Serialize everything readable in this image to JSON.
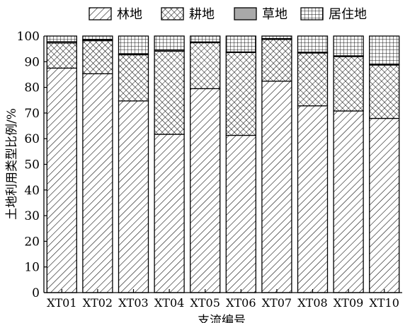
{
  "chart_data": {
    "type": "bar",
    "stacked": true,
    "categories": [
      "XT01",
      "XT02",
      "XT03",
      "XT04",
      "XT05",
      "XT06",
      "XT07",
      "XT08",
      "XT09",
      "XT10"
    ],
    "series": [
      {
        "name": "林地",
        "pattern": "diagonal-hatch",
        "values": [
          87.5,
          85.3,
          74.7,
          61.7,
          79.5,
          61.3,
          82.4,
          72.8,
          70.8,
          67.9
        ]
      },
      {
        "name": "耕地",
        "pattern": "cross-hatch",
        "values": [
          9.8,
          12.9,
          18.0,
          32.4,
          17.9,
          32.3,
          16.3,
          20.6,
          21.2,
          20.8
        ]
      },
      {
        "name": "草地",
        "pattern": "solid-gray",
        "values": [
          0.5,
          0.4,
          0.3,
          0.5,
          0.3,
          0.2,
          0.3,
          0.3,
          0.3,
          0.3
        ]
      },
      {
        "name": "居住地",
        "pattern": "grid",
        "values": [
          2.2,
          1.4,
          7.0,
          5.4,
          2.3,
          6.2,
          1.0,
          6.3,
          7.7,
          11.0
        ]
      }
    ],
    "xlabel": "支流编号",
    "ylabel": "土地利用类型比例/%",
    "ylim": [
      0,
      100
    ],
    "yticks": [
      0,
      10,
      20,
      30,
      40,
      50,
      60,
      70,
      80,
      90,
      100
    ],
    "legend_position": "top",
    "grid": false,
    "colors": {
      "stroke": "#000000",
      "solid": "#a9a9a9",
      "background": "#ffffff"
    }
  }
}
